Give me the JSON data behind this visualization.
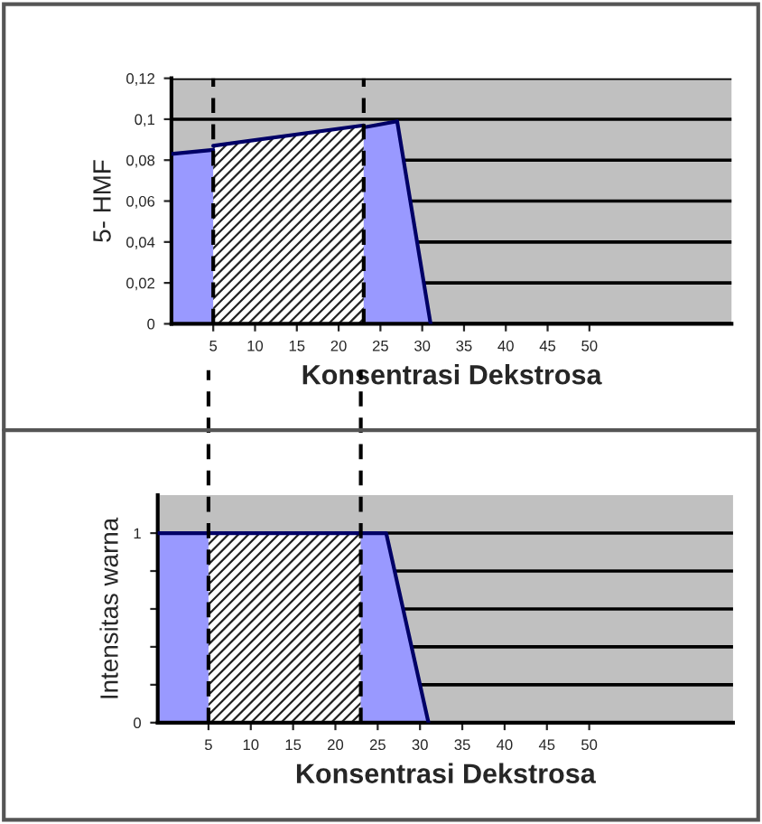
{
  "chart_data": [
    {
      "type": "area",
      "xlabel": "Konsentrasi Dekstrosa",
      "ylabel": "5- HMF",
      "xlim": [
        0,
        67
      ],
      "xticks": [
        5,
        10,
        15,
        20,
        25,
        30,
        35,
        40,
        45,
        50
      ],
      "ylim": [
        0,
        0.12
      ],
      "yticks": [
        {
          "value": 0,
          "label": "0"
        },
        {
          "value": 0.02,
          "label": "0,02"
        },
        {
          "value": 0.04,
          "label": "0,04"
        },
        {
          "value": 0.06,
          "label": "0,06"
        },
        {
          "value": 0.08,
          "label": "0,08"
        },
        {
          "value": 0.1,
          "label": "0,1"
        },
        {
          "value": 0.12,
          "label": "0,12"
        }
      ],
      "grid": "y",
      "series": [
        {
          "color": "#9999ff",
          "x": [
            0,
            5
          ],
          "values": [
            0.083,
            0.085
          ]
        },
        {
          "color": "#ffffff",
          "x": [
            5,
            23
          ],
          "values": [
            0.087,
            0.097
          ]
        },
        {
          "color": "#9999ff",
          "x": [
            23,
            27,
            31
          ],
          "values": [
            0.096,
            0.099,
            0
          ]
        }
      ],
      "ref_lines": [
        {
          "axis": "x",
          "value": 5,
          "line_style": "dashed"
        },
        {
          "axis": "x",
          "value": 23,
          "line_style": "dashed"
        }
      ]
    },
    {
      "type": "area",
      "xlabel": "Konsentrasi Dekstrosa",
      "ylabel": "Intensitas warna",
      "xlim": [
        -1,
        67
      ],
      "xticks": [
        5,
        10,
        15,
        20,
        25,
        30,
        35,
        40,
        45,
        50
      ],
      "ylim": [
        0,
        1.2
      ],
      "yticks": [
        0,
        {
          "value": 0.2,
          "label": null
        },
        {
          "value": 0.4,
          "label": null
        },
        {
          "value": 0.6,
          "label": null
        },
        {
          "value": 0.8,
          "label": null
        },
        1
      ],
      "grid": "y",
      "series": [
        {
          "color": "#9999ff",
          "x": [
            -1,
            5
          ],
          "values": [
            1,
            1
          ]
        },
        {
          "color": "#ffffff",
          "x": [
            5,
            23
          ],
          "values": [
            1,
            1
          ]
        },
        {
          "color": "#9999ff",
          "x": [
            23,
            26,
            31
          ],
          "values": [
            1,
            1,
            0
          ]
        }
      ],
      "ref_lines": [
        {
          "axis": "x",
          "value": 5,
          "line_style": "dashed"
        },
        {
          "axis": "x",
          "value": 23,
          "line_style": "dashed"
        }
      ]
    }
  ]
}
